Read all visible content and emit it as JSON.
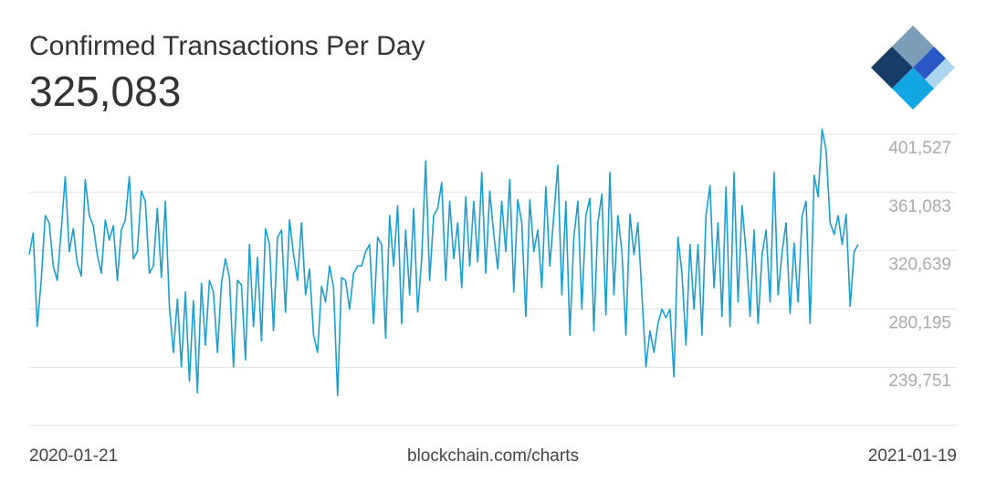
{
  "chart_data": {
    "type": "line",
    "title": "Confirmed Transactions Per Day",
    "headline": "325,083",
    "source": "blockchain.com/charts",
    "color": "#1a9fd0",
    "grid": true,
    "ylim": [
      199307,
      401527
    ],
    "yticks": [
      {
        "value": 239751,
        "label": "239,751"
      },
      {
        "value": 280195,
        "label": "280,195"
      },
      {
        "value": 320639,
        "label": "320,639"
      },
      {
        "value": 361083,
        "label": "361,083"
      },
      {
        "value": 401527,
        "label": "401,527"
      }
    ],
    "categories": [
      "2020-01-21",
      null,
      null,
      null,
      null,
      null,
      null,
      null,
      null,
      null,
      null,
      null,
      null,
      null,
      null,
      null,
      null,
      null,
      null,
      null,
      null,
      null,
      null,
      null,
      null,
      null,
      null,
      null,
      null,
      null,
      null,
      null,
      null,
      null,
      null,
      null,
      null,
      null,
      null,
      null,
      null,
      null,
      null,
      null,
      null,
      null,
      null,
      null,
      null,
      null,
      null,
      null,
      null,
      null,
      null,
      null,
      null,
      null,
      null,
      null,
      null,
      null,
      null,
      null,
      null,
      null,
      null,
      null,
      null,
      null,
      null,
      null,
      null,
      null,
      null,
      null,
      null,
      null,
      null,
      null,
      null,
      null,
      null,
      null,
      null,
      null,
      null,
      null,
      null,
      null,
      null,
      null,
      null,
      null,
      null,
      null,
      null,
      null,
      null,
      null,
      null,
      null,
      null,
      null,
      null,
      null,
      null,
      null,
      null,
      null,
      null,
      null,
      null,
      null,
      null,
      null,
      null,
      null,
      null,
      null,
      null,
      null,
      null,
      null,
      null,
      null,
      null,
      null,
      null,
      null,
      null,
      null,
      null,
      null,
      null,
      null,
      null,
      null,
      null,
      null,
      null,
      null,
      null,
      null,
      null,
      null,
      null,
      null,
      null,
      null,
      null,
      null,
      null,
      null,
      null,
      null,
      null,
      null,
      null,
      null,
      null,
      null,
      null,
      null,
      null,
      null,
      null,
      null,
      null,
      null,
      null,
      null,
      null,
      null,
      null,
      null,
      null,
      null,
      null,
      null,
      null,
      null,
      null,
      null,
      null,
      null,
      null,
      null,
      null,
      null,
      null,
      null,
      null,
      null,
      null,
      null,
      null,
      null,
      null,
      null,
      null,
      null,
      null,
      null,
      null,
      null,
      null,
      "2021-01-19"
    ],
    "values": [
      318000,
      333000,
      268000,
      300000,
      345000,
      340000,
      310000,
      300000,
      335000,
      372000,
      320000,
      336000,
      312000,
      303000,
      370000,
      345000,
      338000,
      318000,
      305000,
      342000,
      328000,
      338000,
      300000,
      335000,
      342000,
      372000,
      315000,
      320000,
      362000,
      355000,
      305000,
      310000,
      350000,
      302000,
      355000,
      282000,
      250000,
      287000,
      240000,
      292000,
      230000,
      286000,
      222000,
      298000,
      255000,
      300000,
      292000,
      250000,
      298000,
      315000,
      302000,
      240000,
      300000,
      297000,
      245000,
      325000,
      268000,
      316000,
      258000,
      336000,
      325000,
      265000,
      330000,
      335000,
      278000,
      342000,
      318000,
      300000,
      340000,
      290000,
      308000,
      262000,
      250000,
      296000,
      285000,
      310000,
      295000,
      220000,
      302000,
      300000,
      280000,
      305000,
      310000,
      310000,
      320000,
      325000,
      270000,
      330000,
      325000,
      260000,
      345000,
      310000,
      352000,
      270000,
      335000,
      290000,
      350000,
      278000,
      315000,
      383000,
      300000,
      345000,
      350000,
      368000,
      300000,
      355000,
      315000,
      340000,
      295000,
      358000,
      310000,
      355000,
      313000,
      375000,
      305000,
      362000,
      332000,
      308000,
      355000,
      320000,
      370000,
      292000,
      356000,
      340000,
      275000,
      356000,
      320000,
      335000,
      295000,
      365000,
      310000,
      345000,
      380000,
      290000,
      355000,
      262000,
      330000,
      355000,
      280000,
      345000,
      357000,
      265000,
      340000,
      360000,
      276000,
      375000,
      290000,
      345000,
      320000,
      262000,
      346000,
      318000,
      340000,
      290000,
      240000,
      265000,
      250000,
      270000,
      280000,
      274000,
      280000,
      233000,
      330000,
      305000,
      255000,
      325000,
      280000,
      325000,
      262000,
      345000,
      366000,
      295000,
      340000,
      275000,
      365000,
      268000,
      375000,
      285000,
      352000,
      320000,
      275000,
      335000,
      270000,
      318000,
      335000,
      285000,
      375000,
      290000,
      320000,
      340000,
      277000,
      326000,
      285000,
      345000,
      355000,
      270000,
      373000,
      358000,
      405000,
      390000,
      340000,
      332000,
      345000,
      325000,
      346000,
      282000,
      320000,
      325083
    ]
  }
}
